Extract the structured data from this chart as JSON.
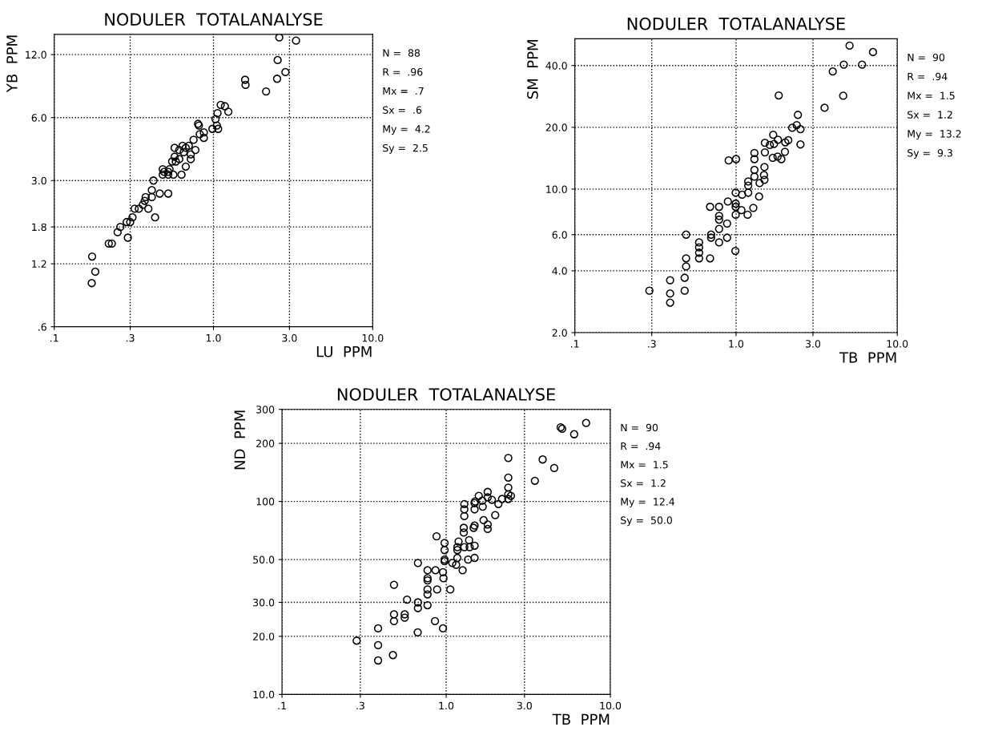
{
  "chart_data": [
    {
      "type": "scatter",
      "title": "NODULER  TOTALANALYSE",
      "xlabel": "LU  PPM",
      "ylabel": "YB  PPM",
      "log": "xy",
      "grid": true,
      "marker": "circle",
      "color": "#000000",
      "xlim": [
        0.1,
        10
      ],
      "ylim": [
        0.6,
        15
      ],
      "xticks": [
        {
          "value": 0.1,
          "label": ".1"
        },
        {
          "value": 0.3,
          "label": ".3"
        },
        {
          "value": 1,
          "label": "1.0"
        },
        {
          "value": 3,
          "label": "3.0"
        },
        {
          "value": 10,
          "label": "10.0"
        }
      ],
      "yticks": [
        {
          "value": 0.6,
          "label": ".6"
        },
        {
          "value": 1.2,
          "label": "1.2"
        },
        {
          "value": 1.8,
          "label": "1.8"
        },
        {
          "value": 3,
          "label": "3.0"
        },
        {
          "value": 6,
          "label": "6.0"
        },
        {
          "value": 12,
          "label": "12.0"
        }
      ],
      "x": [
        2.59,
        3.3,
        2.53,
        2.83,
        2.51,
        1.58,
        1.59,
        2.14,
        1.11,
        1.18,
        1.24,
        1.06,
        1.03,
        1.05,
        0.985,
        1.07,
        0.8,
        0.81,
        0.87,
        0.87,
        0.82,
        0.75,
        0.7,
        0.64,
        0.57,
        0.67,
        0.61,
        0.65,
        0.77,
        0.72,
        0.72,
        0.57,
        0.61,
        0.55,
        0.58,
        0.67,
        0.48,
        0.49,
        0.53,
        0.52,
        0.48,
        0.52,
        0.56,
        0.63,
        0.42,
        0.41,
        0.41,
        0.375,
        0.46,
        0.52,
        0.37,
        0.36,
        0.39,
        0.32,
        0.34,
        0.31,
        0.3,
        0.285,
        0.26,
        0.25,
        0.29,
        0.43,
        0.23,
        0.22,
        0.173,
        0.181,
        0.172
      ],
      "values": [
        14.5,
        14.0,
        11.3,
        9.9,
        9.2,
        9.1,
        8.6,
        8.0,
        6.9,
        6.8,
        6.4,
        6.3,
        5.9,
        5.5,
        5.3,
        5.3,
        5.6,
        5.5,
        5.1,
        4.8,
        5.0,
        4.7,
        4.4,
        4.4,
        4.3,
        4.3,
        4.2,
        4.1,
        4.2,
        4.0,
        3.8,
        3.9,
        3.8,
        3.7,
        3.7,
        3.5,
        3.4,
        3.3,
        3.4,
        3.3,
        3.2,
        3.2,
        3.2,
        3.2,
        3.0,
        2.7,
        2.5,
        2.5,
        2.6,
        2.6,
        2.4,
        2.3,
        2.2,
        2.2,
        2.2,
        2.0,
        1.9,
        1.9,
        1.8,
        1.7,
        1.6,
        2.0,
        1.5,
        1.5,
        1.3,
        1.1,
        0.97
      ],
      "annotations": [
        "N =  88",
        "R =  .96",
        "Mx =  .7",
        "Sx =  .6",
        "My =  4.2",
        "Sy =  2.5"
      ]
    },
    {
      "type": "scatter",
      "title": "NODULER  TOTALANALYSE",
      "xlabel": "TB  PPM",
      "ylabel": "SM  PPM",
      "log": "xy",
      "grid": true,
      "marker": "circle",
      "color": "#000000",
      "xlim": [
        0.1,
        10
      ],
      "ylim": [
        2,
        54
      ],
      "xticks": [
        {
          "value": 0.1,
          "label": ".1"
        },
        {
          "value": 0.3,
          "label": ".3"
        },
        {
          "value": 1,
          "label": "1.0"
        },
        {
          "value": 3,
          "label": "3.0"
        },
        {
          "value": 10,
          "label": "10.0"
        }
      ],
      "yticks": [
        {
          "value": 2,
          "label": "2.0"
        },
        {
          "value": 4,
          "label": "4.0"
        },
        {
          "value": 6,
          "label": "6.0"
        },
        {
          "value": 10,
          "label": "10.0"
        },
        {
          "value": 20,
          "label": "20.0"
        },
        {
          "value": 40,
          "label": "40.0"
        }
      ],
      "x": [
        5.06,
        7.07,
        4.66,
        6.05,
        3.98,
        1.84,
        4.62,
        3.54,
        2.42,
        2.23,
        2.38,
        2.51,
        1.7,
        1.51,
        1.72,
        1.62,
        1.82,
        2.02,
        2.11,
        1.51,
        1.69,
        1.81,
        1.91,
        2.01,
        2.51,
        1.3,
        1.3,
        0.9,
        1.0,
        1.5,
        1.3,
        1.3,
        1.49,
        1.5,
        1.4,
        1.19,
        1.19,
        1.19,
        1.09,
        0.995,
        1.39,
        0.89,
        0.995,
        0.995,
        0.785,
        0.69,
        1.08,
        0.995,
        1.18,
        1.28,
        0.785,
        0.785,
        0.88,
        0.785,
        0.7,
        0.7,
        0.49,
        0.88,
        0.785,
        0.59,
        0.59,
        0.59,
        0.59,
        0.69,
        0.49,
        0.49,
        0.99,
        0.48,
        0.39,
        0.39,
        0.39,
        0.48,
        0.29
      ],
      "values": [
        50,
        46.5,
        40.4,
        40.4,
        37.4,
        28.6,
        28.5,
        24.9,
        23.0,
        19.9,
        20.5,
        19.6,
        18.4,
        16.8,
        16.6,
        16.4,
        17.4,
        16.9,
        17.3,
        15.1,
        14.2,
        14.4,
        14.0,
        15.2,
        16.5,
        15.0,
        14.0,
        13.8,
        14.0,
        12.8,
        12.4,
        11.5,
        11.7,
        11.1,
        10.7,
        10.9,
        10.4,
        9.6,
        9.4,
        9.6,
        9.2,
        8.7,
        8.5,
        8.2,
        8.2,
        8.2,
        7.9,
        7.5,
        7.5,
        8.1,
        7.4,
        7.1,
        6.8,
        6.4,
        6.0,
        5.8,
        6.0,
        5.8,
        5.5,
        5.5,
        5.2,
        4.9,
        4.6,
        4.6,
        4.6,
        4.2,
        5.0,
        3.7,
        3.6,
        3.1,
        2.8,
        3.2,
        3.2
      ],
      "annotations": [
        "N =  90",
        "R =  .94",
        "Mx =  1.5",
        "Sx =  1.2",
        "My =  13.2",
        "Sy =  9.3"
      ]
    },
    {
      "type": "scatter",
      "title": "NODULER  TOTALANALYSE",
      "xlabel": "TB  PPM",
      "ylabel": "ND  PPM",
      "log": "xy",
      "grid": true,
      "marker": "circle",
      "color": "#000000",
      "xlim": [
        0.1,
        10
      ],
      "ylim": [
        10,
        300
      ],
      "xticks": [
        {
          "value": 0.1,
          "label": ".1"
        },
        {
          "value": 0.3,
          "label": ".3"
        },
        {
          "value": 1,
          "label": "1.0"
        },
        {
          "value": 3,
          "label": "3.0"
        },
        {
          "value": 10,
          "label": "10.0"
        }
      ],
      "yticks": [
        {
          "value": 10,
          "label": "10.0"
        },
        {
          "value": 20,
          "label": "20.0"
        },
        {
          "value": 30,
          "label": "30.0"
        },
        {
          "value": 50,
          "label": "50.0"
        },
        100,
        200,
        300
      ],
      "x": [
        7.12,
        4.98,
        5.09,
        6.02,
        2.39,
        3.87,
        4.55,
        3.47,
        2.39,
        2.39,
        2.39,
        2.39,
        2.48,
        1.79,
        1.58,
        1.79,
        1.66,
        1.5,
        1.9,
        2.08,
        2.19,
        1.99,
        1.29,
        1.29,
        1.29,
        1.49,
        1.49,
        1.67,
        1.69,
        1.79,
        1.79,
        1.49,
        1.47,
        1.28,
        1.28,
        1.38,
        1.19,
        1.17,
        1.29,
        1.39,
        1.49,
        1.36,
        1.49,
        1.17,
        1.17,
        1.15,
        1.09,
        1.26,
        0.874,
        0.978,
        0.978,
        0.978,
        0.978,
        0.956,
        0.963,
        1.06,
        0.861,
        0.77,
        0.77,
        0.77,
        0.881,
        0.77,
        0.77,
        0.77,
        0.673,
        0.481,
        0.578,
        0.673,
        0.673,
        0.559,
        0.559,
        0.481,
        0.481,
        0.855,
        0.956,
        0.671,
        0.385,
        0.385,
        0.385,
        0.474,
        0.285
      ],
      "values": [
        255,
        242,
        238,
        223,
        168,
        165,
        149,
        128,
        133,
        118,
        109,
        103,
        107,
        112,
        107,
        105,
        101,
        100,
        102,
        97,
        103,
        85,
        97,
        91,
        84,
        98,
        91,
        94,
        80,
        76,
        72,
        75,
        73,
        73,
        69,
        63,
        62,
        58,
        58,
        58,
        59,
        50,
        51,
        56,
        51,
        47,
        48,
        44,
        66,
        61,
        56,
        50,
        49,
        43,
        40,
        35,
        44,
        44,
        40,
        39,
        35,
        35,
        33,
        29,
        48,
        37,
        31,
        30,
        28,
        26,
        25,
        26,
        24,
        24,
        22,
        21,
        22,
        18,
        15,
        16,
        19
      ],
      "annotations": [
        "N =  90",
        "R =  .94",
        "Mx =  1.5",
        "Sx =  1.2",
        "My =  12.4",
        "Sy =  50.0"
      ]
    }
  ]
}
